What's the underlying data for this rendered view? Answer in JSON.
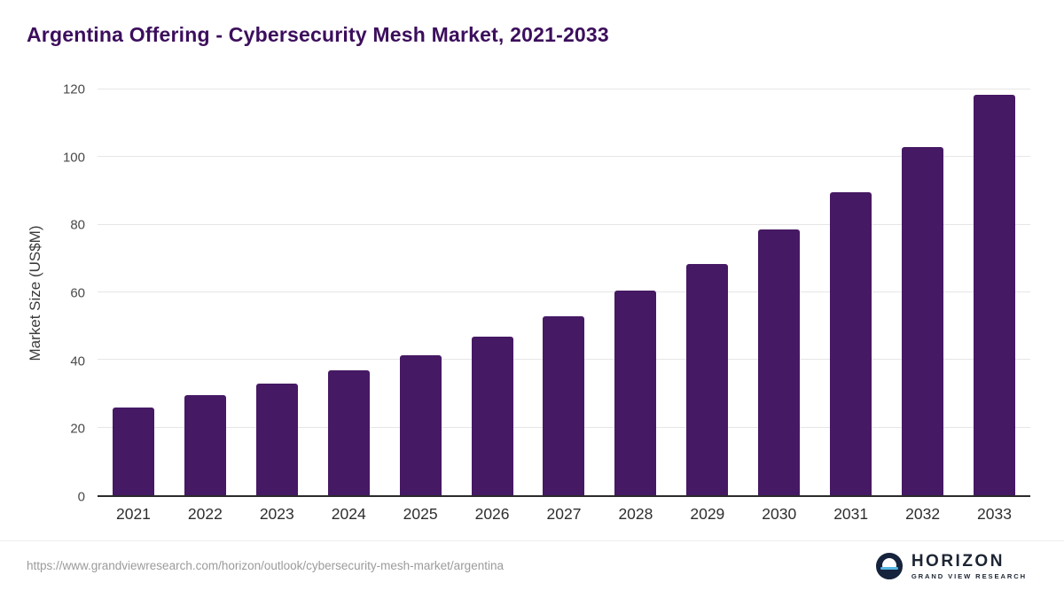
{
  "chart_data": {
    "type": "bar",
    "title": "Argentina Offering - Cybersecurity Mesh Market, 2021-2033",
    "categories": [
      "2021",
      "2022",
      "2023",
      "2024",
      "2025",
      "2026",
      "2027",
      "2028",
      "2029",
      "2030",
      "2031",
      "2032",
      "2033"
    ],
    "values": [
      26,
      29.5,
      33,
      37,
      41.5,
      47,
      53,
      60.5,
      68.5,
      78.5,
      89.5,
      103,
      118.5
    ],
    "xlabel": "",
    "ylabel": "Market Size (US$M)",
    "ylim": [
      0,
      120
    ],
    "yticks": [
      0,
      20,
      40,
      60,
      80,
      100,
      120
    ],
    "grid": true,
    "legend": false,
    "bar_color": "#461964",
    "title_color": "#3c0e5c"
  },
  "footer": {
    "source_url": "https://www.grandviewresearch.com/horizon/outlook/cybersecurity-mesh-market/argentina",
    "brand_name": "HORIZON",
    "brand_subtitle": "GRAND VIEW RESEARCH",
    "logo_icon": "horizon-circle-icon"
  }
}
